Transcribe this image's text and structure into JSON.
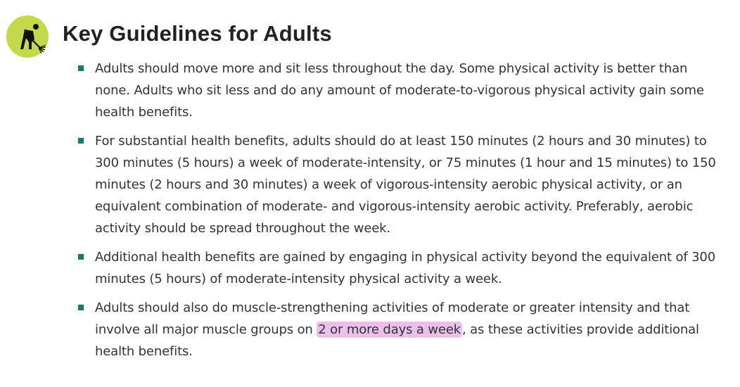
{
  "icon": "person-raking-icon",
  "colors": {
    "icon_bg": "#c3d94a",
    "bullet": "#147a6b",
    "highlight": "#ebc0eb"
  },
  "title": "Key Guidelines for Adults",
  "items": [
    {
      "text": "Adults should move more and sit less throughout the day. Some physical activity is better than none. Adults who sit less and do any amount of moderate-to-vigorous physical activity gain some health benefits."
    },
    {
      "text": "For substantial health benefits, adults should do at least 150 minutes (2 hours and 30 minutes) to 300 minutes (5 hours) a week of moderate-intensity, or 75 minutes (1 hour and 15 minutes) to 150 minutes (2 hours and 30 minutes) a week of vigorous-intensity aerobic physical activity, or an equivalent combination of moderate- and vigorous-intensity aerobic activity. Preferably, aerobic activity should be spread throughout the week."
    },
    {
      "text": "Additional health benefits are gained by engaging in physical activity beyond the equivalent of 300 minutes (5 hours) of moderate-intensity physical activity a week."
    },
    {
      "before": "Adults should also do muscle-strengthening activities of moderate or greater intensity and that involve all major muscle groups on ",
      "highlight": "2 or more days a week",
      "after": ", as these activities provide additional health benefits."
    }
  ]
}
